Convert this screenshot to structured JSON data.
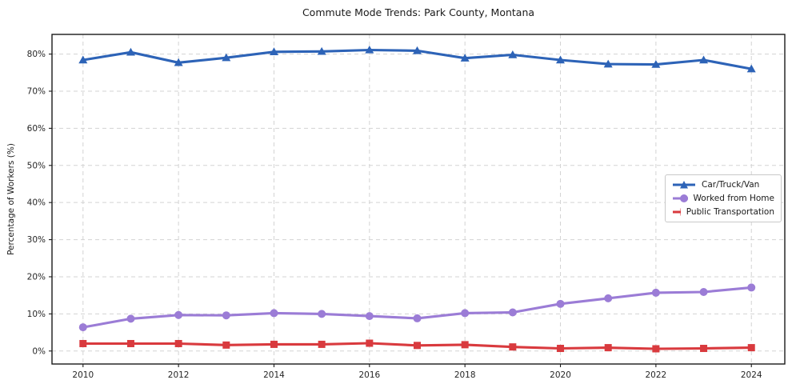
{
  "chart_data": {
    "type": "line",
    "title": "Commute Mode Trends: Park County, Montana",
    "xlabel": "",
    "ylabel": "Percentage of Workers (%)",
    "x": [
      2010,
      2011,
      2012,
      2013,
      2014,
      2015,
      2016,
      2017,
      2018,
      2019,
      2020,
      2021,
      2022,
      2023,
      2024
    ],
    "series": [
      {
        "name": "Car/Truck/Van",
        "color": "#2d63b7",
        "marker": "triangle",
        "values": [
          78.4,
          80.5,
          77.7,
          79.0,
          80.6,
          80.7,
          81.1,
          80.9,
          78.9,
          79.8,
          78.4,
          77.3,
          77.2,
          78.4,
          76.0
        ]
      },
      {
        "name": "Worked from Home",
        "color": "#9b7cd6",
        "marker": "circle",
        "values": [
          6.4,
          8.7,
          9.7,
          9.6,
          10.2,
          10.0,
          9.4,
          8.8,
          10.2,
          10.4,
          12.7,
          14.2,
          15.7,
          15.9,
          17.1
        ]
      },
      {
        "name": "Public Transportation",
        "color": "#d93a3e",
        "marker": "square",
        "values": [
          2.0,
          2.0,
          2.0,
          1.6,
          1.8,
          1.8,
          2.1,
          1.5,
          1.7,
          1.1,
          0.7,
          0.9,
          0.6,
          0.7,
          0.9
        ]
      }
    ],
    "xlim": [
      2009.35,
      2024.7
    ],
    "ylim": [
      -3.5,
      85.3
    ],
    "xticks": [
      2010,
      2012,
      2014,
      2016,
      2018,
      2020,
      2022,
      2024
    ],
    "xtick_labels": [
      "2010",
      "2012",
      "2014",
      "2016",
      "2018",
      "2020",
      "2022",
      "2024"
    ],
    "yticks": [
      0,
      10,
      20,
      30,
      40,
      50,
      60,
      70,
      80
    ],
    "ytick_labels": [
      "0%",
      "10%",
      "20%",
      "30%",
      "40%",
      "50%",
      "60%",
      "70%",
      "80%"
    ],
    "grid": true,
    "legend_position": "center-right"
  },
  "colors": {
    "car_truck_van": "#2d63b7",
    "worked_from_home": "#9b7cd6",
    "public_transportation": "#d93a3e",
    "grid": "#d3d3d3",
    "axis": "#1a1a1a",
    "background": "#ffffff"
  }
}
